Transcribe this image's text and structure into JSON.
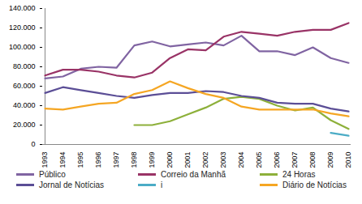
{
  "chart_data": {
    "type": "line",
    "x": [
      "1993",
      "1994",
      "1995",
      "1996",
      "1997",
      "1998",
      "1999",
      "2000",
      "2001",
      "2002",
      "2003",
      "2004",
      "2005",
      "2006",
      "2007",
      "2008",
      "2009",
      "2010"
    ],
    "ylim": [
      0,
      140000
    ],
    "yticks": [
      0,
      {
        "value": 20000,
        "label": "20.000"
      },
      {
        "value": 40000,
        "label": "40.000"
      },
      {
        "value": 60000,
        "label": "60.000"
      },
      {
        "value": 80000,
        "label": "80.000"
      },
      {
        "value": 100000,
        "label": "100.000"
      },
      {
        "value": 120000,
        "label": "120.000"
      },
      {
        "value": 140000,
        "label": "140.000"
      }
    ],
    "grid": false,
    "legend": "bottom",
    "series": [
      {
        "name": "Público",
        "color": "#8064a2",
        "values": [
          68000,
          70000,
          78000,
          80000,
          79000,
          102000,
          106000,
          101000,
          103000,
          105000,
          102000,
          112000,
          96000,
          96000,
          92000,
          100000,
          89000,
          84000
        ]
      },
      {
        "name": "Correio da Manhã",
        "color": "#993366",
        "values": [
          71000,
          77000,
          77000,
          75000,
          71000,
          69000,
          74000,
          89000,
          98000,
          97000,
          111000,
          116000,
          114000,
          112000,
          116000,
          118000,
          118000,
          125000
        ]
      },
      {
        "name": "24 Horas",
        "color": "#8db03a",
        "values": [
          null,
          null,
          null,
          null,
          null,
          20000,
          20000,
          24000,
          31000,
          38000,
          47000,
          49000,
          47000,
          40000,
          35000,
          38000,
          25000,
          16000
        ]
      },
      {
        "name": "Jornal de Notícias",
        "color": "#5b4e96",
        "values": [
          53000,
          59000,
          56000,
          53000,
          50000,
          48000,
          51000,
          53000,
          53000,
          55000,
          54000,
          50000,
          48000,
          43000,
          42000,
          42000,
          37000,
          34000
        ]
      },
      {
        "name": "i",
        "color": "#4bacc6",
        "values": [
          null,
          null,
          null,
          null,
          null,
          null,
          null,
          null,
          null,
          null,
          null,
          null,
          null,
          null,
          null,
          null,
          12000,
          9000
        ]
      },
      {
        "name": "Diário de Notícias",
        "color": "#f5a623",
        "values": [
          37000,
          36000,
          39000,
          42000,
          43000,
          52000,
          56000,
          65000,
          58000,
          52000,
          48000,
          39000,
          36000,
          36000,
          36000,
          36000,
          32000,
          29000
        ]
      }
    ]
  }
}
